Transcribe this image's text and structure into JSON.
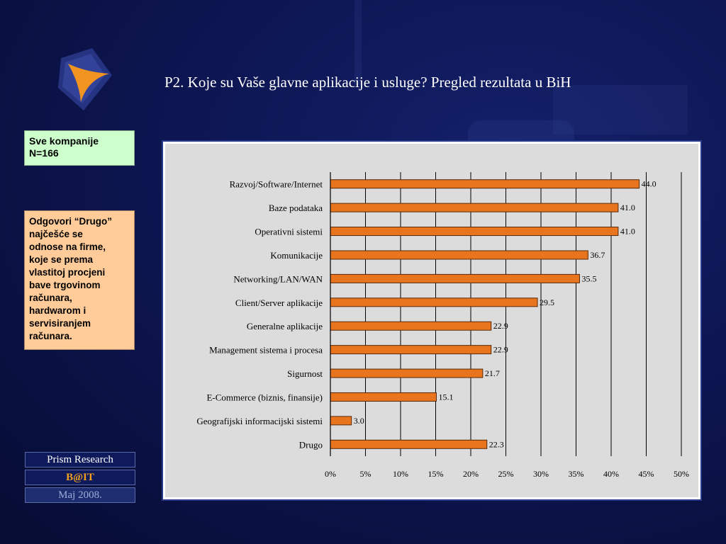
{
  "title": "P2. Koje su Vaše glavne aplikacije i usluge? Pregled rezultata u BiH",
  "sidebar": {
    "sample_lines": [
      "Sve kompanije",
      "N=166"
    ],
    "note_lines": [
      "Odgovori “Drugo”",
      "najčešće se",
      "odnose na firme,",
      "koje se prema",
      "vlastitoj procjeni",
      "bave trgovinom",
      "računara,",
      "hardwarom i",
      "servisiranjem",
      "računara."
    ]
  },
  "footer": {
    "company": "Prism Research",
    "project": "B@IT",
    "date": "Maj 2008."
  },
  "colors": {
    "bar_fill": "#e8741e",
    "bar_stroke": "#5a2a08",
    "plot_bg": "#dcdcdc",
    "accent_orange": "#f29422",
    "badge_gold": "#f0a020"
  },
  "chart_data": {
    "type": "bar",
    "orientation": "horizontal",
    "categories": [
      "Razvoj/Software/Internet",
      "Baze podataka",
      "Operativni sistemi",
      "Komunikacije",
      "Networking/LAN/WAN",
      "Client/Server aplikacije",
      "Generalne aplikacije",
      "Management sistema i procesa",
      "Sigurnost",
      "E-Commerce (biznis, finansije)",
      "Geografijski informacijski sistemi",
      "Drugo"
    ],
    "values": [
      44.0,
      41.0,
      41.0,
      36.7,
      35.5,
      29.5,
      22.9,
      22.9,
      21.7,
      15.1,
      3.0,
      22.3
    ],
    "value_labels": [
      "44.0",
      "41.0",
      "41.0",
      "36.7",
      "35.5",
      "29.5",
      "22.9",
      "22.9",
      "21.7",
      "15.1",
      "3.0",
      "22.3"
    ],
    "xlim": [
      0,
      50
    ],
    "x_ticks": [
      "0%",
      "5%",
      "10%",
      "15%",
      "20%",
      "25%",
      "30%",
      "35%",
      "40%",
      "45%",
      "50%"
    ],
    "grid": true
  }
}
